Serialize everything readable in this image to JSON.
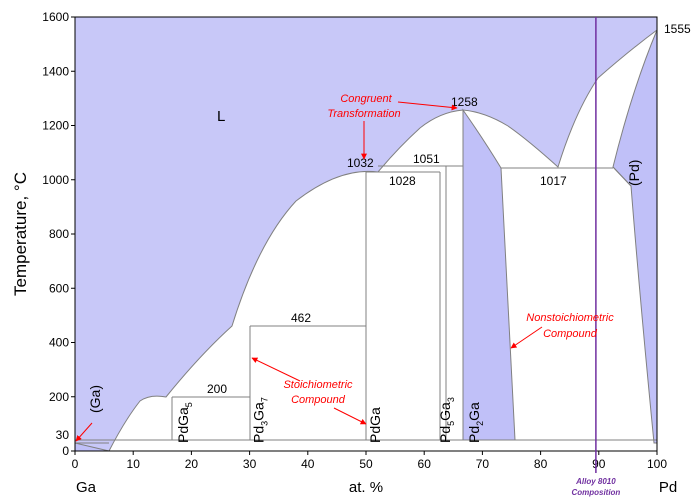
{
  "chart_data": {
    "type": "phase-diagram",
    "ylabel": "Temperature, °C",
    "xlabel": "at. %",
    "x_left_element": "Ga",
    "x_right_element": "Pd",
    "xlim": [
      0,
      100
    ],
    "ylim": [
      0,
      1600
    ],
    "xticks": [
      "0",
      "10",
      "20",
      "30",
      "40",
      "50",
      "60",
      "70",
      "80",
      "90",
      "100"
    ],
    "yticks": [
      "0",
      "200",
      "400",
      "600",
      "800",
      "1000",
      "1200",
      "1400",
      "1600"
    ],
    "extra_ytick": "30",
    "colors": {
      "liquid": "#c8c8f8",
      "phase": "#c0c0f8",
      "boundary": "#808080",
      "annotation": "#ff0000",
      "alloy": "#7030a0"
    },
    "temperatures": {
      "t_1555": "1555",
      "t_1258": "1258",
      "t_1051": "1051",
      "t_1032": "1032",
      "t_1028": "1028",
      "t_1017": "1017",
      "t_462": "462",
      "t_200": "200"
    },
    "regions": {
      "liquid": "L",
      "ga_solid": "(Ga)",
      "pd_solid": "(Pd)"
    },
    "compounds": [
      {
        "base": "PdGa",
        "sub": "5",
        "x": 17
      },
      {
        "base": "Pd",
        "sub": "3",
        "tail": "Ga",
        "sub2": "7",
        "x": 30
      },
      {
        "base": "PdGa",
        "sub": "",
        "x": 50
      },
      {
        "base": "Pd",
        "sub": "5",
        "tail": "Ga",
        "sub2": "3",
        "x": 62
      },
      {
        "base": "Pd",
        "sub": "2",
        "tail": "Ga",
        "sub2": "",
        "x": 67
      }
    ],
    "annotations": {
      "congruent_1": "Congruent",
      "congruent_2": "Transformation",
      "stoich_1": "Stoichiometric",
      "stoich_2": "Compound",
      "nonstoich_1": "Nonstoichiometric",
      "nonstoich_2": "Compound"
    },
    "alloy": {
      "x": 89.5,
      "label_1": "Alloy 8010",
      "label_2": "Composition"
    }
  }
}
